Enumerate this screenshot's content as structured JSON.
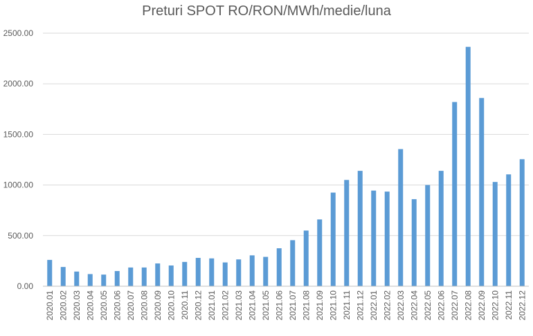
{
  "chart_data": {
    "type": "bar",
    "title": "Preturi SPOT RO/RON/MWh/medie/luna",
    "xlabel": "",
    "ylabel": "",
    "ylim": [
      0,
      2500
    ],
    "yticks": [
      "0.00",
      "500.00",
      "1000.00",
      "1500.00",
      "2000.00",
      "2500.00"
    ],
    "grid": true,
    "legend": "none",
    "bar_color": "#5b9bd5",
    "categories": [
      "2020.01",
      "2020.02",
      "2020.03",
      "2020.04",
      "2020.05",
      "2020.06",
      "2020.07",
      "2020.08",
      "2020.09",
      "2020.10",
      "2020.11",
      "2020.12",
      "2021.01",
      "2021.02",
      "2021.03",
      "2021.04",
      "2021.05",
      "2021.06",
      "2021.07",
      "2021.08",
      "2021.09",
      "2021.10",
      "2021.11",
      "2021.12",
      "2022.01",
      "2022.02",
      "2022.03",
      "2022.04",
      "2022.05",
      "2022.06",
      "2022.07",
      "2022.08",
      "2022.09",
      "2022.10",
      "2022.11",
      "2022.12"
    ],
    "values": [
      260,
      190,
      145,
      120,
      115,
      150,
      185,
      185,
      225,
      205,
      240,
      280,
      275,
      235,
      265,
      305,
      290,
      375,
      455,
      550,
      660,
      925,
      1050,
      1140,
      945,
      935,
      1355,
      860,
      1000,
      1140,
      1820,
      2365,
      1860,
      1030,
      1105,
      1255
    ]
  }
}
